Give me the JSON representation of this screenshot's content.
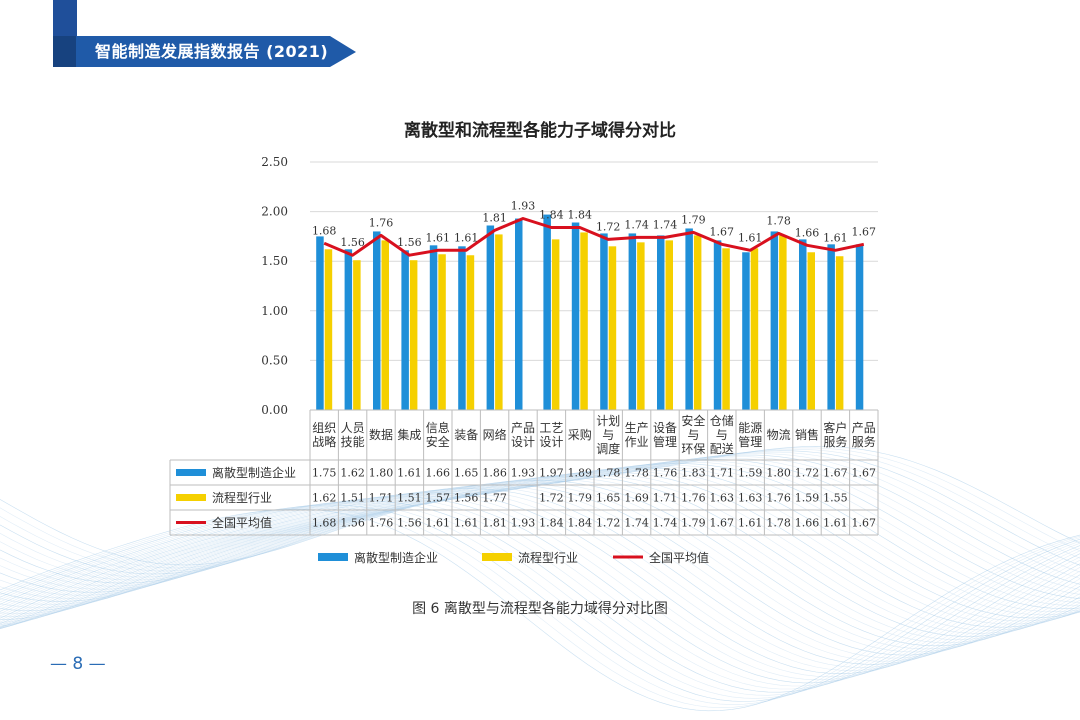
{
  "header": {
    "title": "智能制造发展指数报告 (2021)"
  },
  "chart_data": {
    "type": "bar",
    "title": "离散型和流程型各能力子域得分对比",
    "categories": [
      "组织\n战略",
      "人员\n技能",
      "数据",
      "集成",
      "信息\n安全",
      "装备",
      "网络",
      "产品\n设计",
      "工艺\n设计",
      "采购",
      "计划\n与\n调度",
      "生产\n作业",
      "设备\n管理",
      "安全\n与\n环保",
      "仓储\n与\n配送",
      "能源\n管理",
      "物流",
      "销售",
      "客户\n服务",
      "产品\n服务"
    ],
    "ylim": [
      0,
      2.5
    ],
    "yticks": [
      "0.00",
      "0.50",
      "1.00",
      "1.50",
      "2.00",
      "2.50"
    ],
    "series": [
      {
        "name": "离散型制造企业",
        "kind": "bar",
        "color": "#1f8fd8",
        "values": [
          1.75,
          1.62,
          1.8,
          1.61,
          1.66,
          1.65,
          1.86,
          1.93,
          1.97,
          1.89,
          1.78,
          1.78,
          1.76,
          1.83,
          1.71,
          1.59,
          1.8,
          1.72,
          1.67,
          1.67
        ],
        "labels": [
          "1.75",
          "1.62",
          "1.80",
          "1.61",
          "1.66",
          "1.65",
          "1.86",
          "1.93",
          "1.97",
          "1.89",
          "1.78",
          "1.78",
          "1.76",
          "1.83",
          "1.71",
          "1.59",
          "1.80",
          "1.72",
          "1.67",
          "1.67"
        ]
      },
      {
        "name": "流程型行业",
        "kind": "bar",
        "color": "#f5d000",
        "values": [
          1.62,
          1.51,
          1.71,
          1.51,
          1.57,
          1.56,
          1.77,
          null,
          1.72,
          1.79,
          1.65,
          1.69,
          1.71,
          1.76,
          1.63,
          1.63,
          1.76,
          1.59,
          1.55,
          null
        ],
        "labels": [
          "1.62",
          "1.51",
          "1.71",
          "1.51",
          "1.57",
          "1.56",
          "1.77",
          "",
          "1.72",
          "1.79",
          "1.65",
          "1.69",
          "1.71",
          "1.76",
          "1.63",
          "1.63",
          "1.76",
          "1.59",
          "1.55",
          ""
        ]
      },
      {
        "name": "全国平均值",
        "kind": "line",
        "color": "#d8101e",
        "values": [
          1.68,
          1.56,
          1.76,
          1.56,
          1.61,
          1.61,
          1.81,
          1.93,
          1.84,
          1.84,
          1.72,
          1.74,
          1.74,
          1.79,
          1.67,
          1.61,
          1.78,
          1.66,
          1.61,
          1.67
        ],
        "labels": [
          "1.68",
          "1.56",
          "1.76",
          "1.56",
          "1.61",
          "1.61",
          "1.81",
          "1.93",
          "1.84",
          "1.84",
          "1.72",
          "1.74",
          "1.74",
          "1.79",
          "1.67",
          "1.61",
          "1.78",
          "1.66",
          "1.61",
          "1.67"
        ]
      }
    ],
    "grid": true,
    "legend": "bottom",
    "data_table": true
  },
  "caption": "图 6  离散型与流程型各能力域得分对比图",
  "page": {
    "number": "8",
    "dash": "—"
  }
}
